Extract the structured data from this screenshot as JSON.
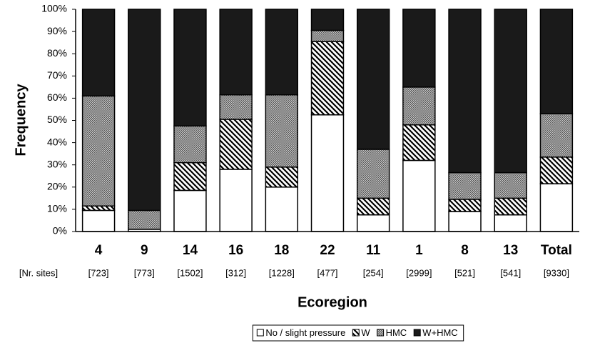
{
  "chart_data": {
    "type": "stacked_bar",
    "x_label": "Ecoregion",
    "y_label": "Frequency",
    "categories": [
      "4",
      "9",
      "14",
      "16",
      "18",
      "22",
      "11",
      "1",
      "8",
      "13",
      "Total"
    ],
    "site_counts_label": "[Nr. sites]",
    "site_counts": [
      "[723]",
      "[773]",
      "[1502]",
      "[312]",
      "[1228]",
      "[477]",
      "[254]",
      "[2999]",
      "[521]",
      "[541]",
      "[9330]"
    ],
    "series": [
      {
        "name": "No / slight pressure",
        "color": "#ffffff",
        "pattern": "solid",
        "values": [
          9.5,
          1,
          18.5,
          28,
          20,
          52.5,
          7.5,
          32,
          9,
          7.5,
          21.5
        ]
      },
      {
        "name": "W",
        "color": "#000000",
        "pattern": "hatch",
        "values": [
          2,
          0,
          12.5,
          22.5,
          9,
          33,
          7.5,
          16,
          5.5,
          7.5,
          12
        ]
      },
      {
        "name": "HMC",
        "color": "#a3a3a3",
        "pattern": "dots",
        "values": [
          49.5,
          8.5,
          16.5,
          11,
          32.5,
          5,
          22,
          17,
          12,
          11.5,
          19.5
        ]
      },
      {
        "name": "W+HMC",
        "color": "#1a1a1a",
        "pattern": "solid",
        "values": [
          39,
          90.5,
          52.5,
          38.5,
          38.5,
          9.5,
          63,
          35,
          73.5,
          73.5,
          47
        ]
      }
    ],
    "ylim": [
      0,
      100
    ],
    "yticks": [
      {
        "value": 0,
        "label": "0%"
      },
      {
        "value": 10,
        "label": "10%"
      },
      {
        "value": 20,
        "label": "20%"
      },
      {
        "value": 30,
        "label": "30%"
      },
      {
        "value": 40,
        "label": "40%"
      },
      {
        "value": 50,
        "label": "50%"
      },
      {
        "value": 60,
        "label": "60%"
      },
      {
        "value": 70,
        "label": "70%"
      },
      {
        "value": 80,
        "label": "80%"
      },
      {
        "value": 90,
        "label": "90%"
      },
      {
        "value": 100,
        "label": "100%"
      }
    ],
    "legend": "bottom"
  }
}
